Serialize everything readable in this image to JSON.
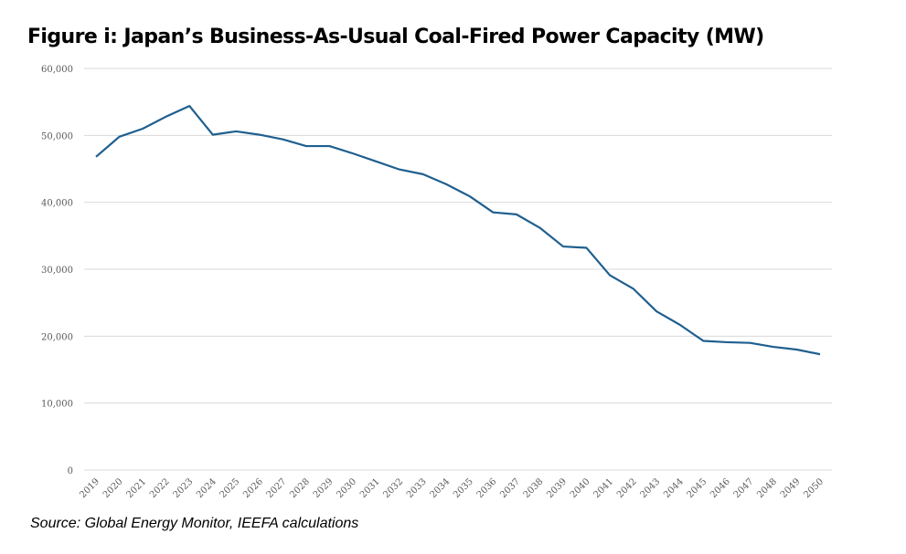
{
  "chart_data": {
    "type": "line",
    "title": "Figure i: Japan’s Business-As-Usual Coal-Fired Power Capacity (MW)",
    "source": "Source: Global Energy Monitor, IEEFA calculations",
    "xlabel": "",
    "ylabel": "",
    "ylim": [
      0,
      60000
    ],
    "yticks": [
      "0",
      "10,000",
      "20,000",
      "30,000",
      "40,000",
      "50,000",
      "60,000"
    ],
    "grid": true,
    "line_color": "#1f5f8f",
    "categories": [
      "2019",
      "2020",
      "2021",
      "2022",
      "2023",
      "2024",
      "2025",
      "2026",
      "2027",
      "2028",
      "2029",
      "2030",
      "2031",
      "2032",
      "2033",
      "2034",
      "2035",
      "2036",
      "2037",
      "2038",
      "2039",
      "2040",
      "2041",
      "2042",
      "2043",
      "2044",
      "2045",
      "2046",
      "2047",
      "2048",
      "2049",
      "2050"
    ],
    "values": [
      46800,
      49800,
      51000,
      52800,
      54400,
      50100,
      50600,
      50100,
      49400,
      48400,
      48400,
      47300,
      46100,
      44900,
      44200,
      42700,
      40900,
      38500,
      38200,
      36200,
      33400,
      33200,
      29100,
      27100,
      23700,
      21700,
      19300,
      19100,
      19000,
      18400,
      18000,
      17300
    ]
  }
}
